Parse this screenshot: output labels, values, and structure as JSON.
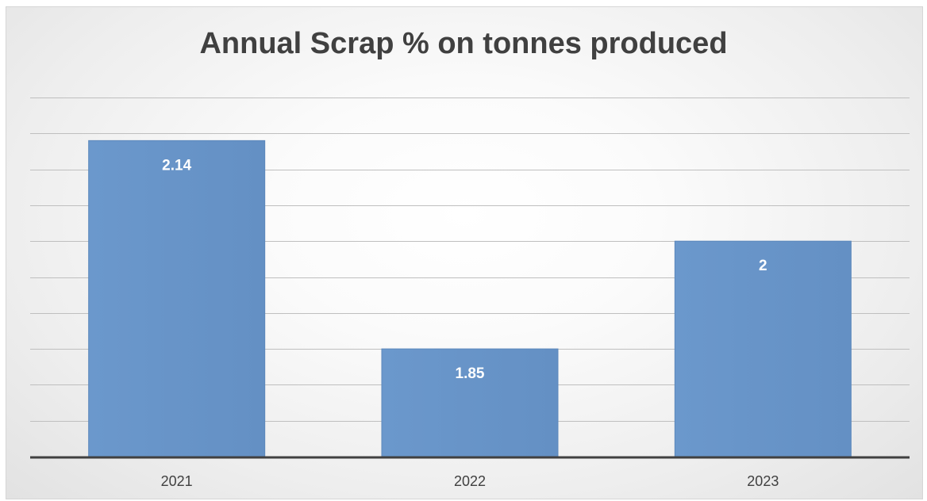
{
  "chart_data": {
    "type": "bar",
    "title": "Annual Scrap % on tonnes produced",
    "xlabel": "",
    "ylabel": "",
    "categories": [
      "2021",
      "2022",
      "2023"
    ],
    "values": [
      2.14,
      1.85,
      2
    ],
    "data_labels": [
      "2.14",
      "1.85",
      "2"
    ],
    "ylim": [
      1.7,
      2.2
    ],
    "y_tick_step": 0.05,
    "grid": true,
    "legend": "none",
    "colors": {
      "bar": "#6a96c9",
      "bar_edge": "#5c88bc",
      "label": "#ffffff",
      "axis": "#404040",
      "grid": "#bfbfbf",
      "tick_text": "#404040"
    }
  }
}
